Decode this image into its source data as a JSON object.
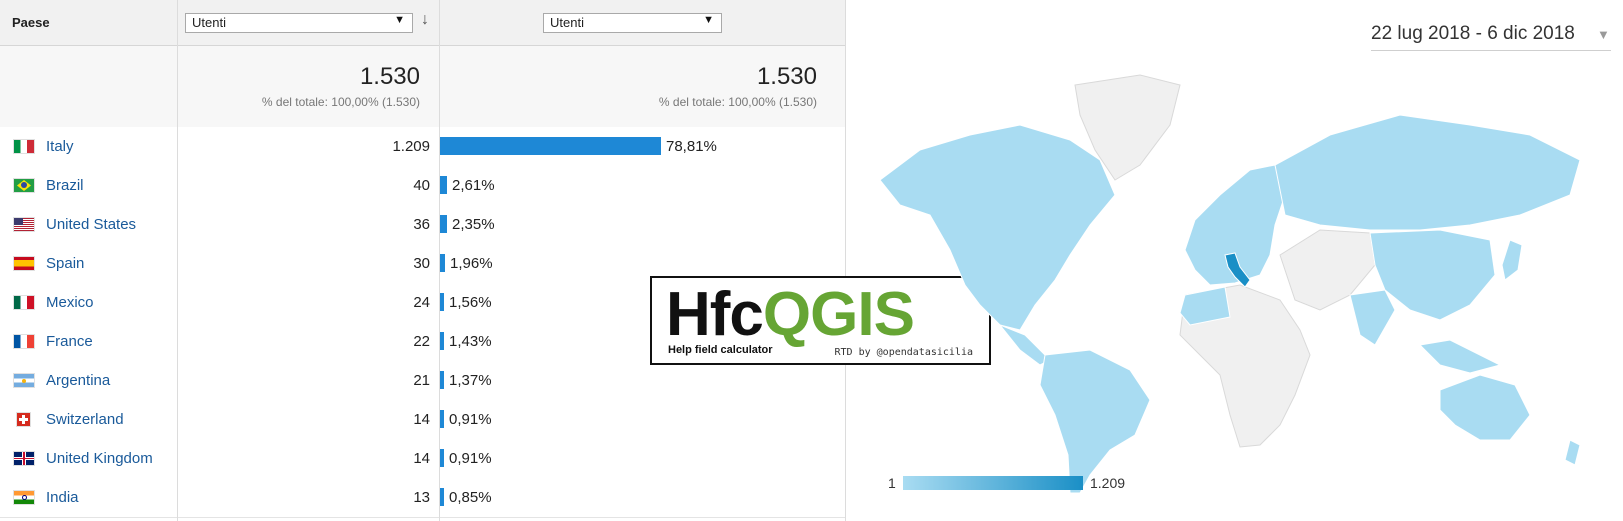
{
  "table": {
    "country_header": "Paese",
    "metric_select_label": "Utenti",
    "compare_select_label": "Utenti",
    "totals": {
      "value": "1.530",
      "subtitle": "% del totale: 100,00% (1.530)",
      "value2": "1.530",
      "subtitle2": "% del totale: 100,00% (1.530)"
    },
    "rows": [
      {
        "country": "Italy",
        "users": "1.209",
        "pct_label": "78,81%",
        "pct": 78.81
      },
      {
        "country": "Brazil",
        "users": "40",
        "pct_label": "2,61%",
        "pct": 2.61
      },
      {
        "country": "United States",
        "users": "36",
        "pct_label": "2,35%",
        "pct": 2.35
      },
      {
        "country": "Spain",
        "users": "30",
        "pct_label": "1,96%",
        "pct": 1.96
      },
      {
        "country": "Mexico",
        "users": "24",
        "pct_label": "1,56%",
        "pct": 1.56
      },
      {
        "country": "France",
        "users": "22",
        "pct_label": "1,43%",
        "pct": 1.43
      },
      {
        "country": "Argentina",
        "users": "21",
        "pct_label": "1,37%",
        "pct": 1.37
      },
      {
        "country": "Switzerland",
        "users": "14",
        "pct_label": "0,91%",
        "pct": 0.91
      },
      {
        "country": "United Kingdom",
        "users": "14",
        "pct_label": "0,91%",
        "pct": 0.91
      },
      {
        "country": "India",
        "users": "13",
        "pct_label": "0,85%",
        "pct": 0.85
      }
    ],
    "bar_color": "#1e88d6"
  },
  "logo": {
    "title_part1": "Hfc",
    "title_part2": "QGIS",
    "subtitle": "Help field calculator",
    "credit": "RTD by @opendatasicilia"
  },
  "map": {
    "date_range": "22 lug 2018 - 6 dic 2018",
    "legend_min": "1",
    "legend_max": "1.209",
    "color_low": "#a9dcf2",
    "color_high": "#1a8fc6",
    "color_nodata": "#f0f0f0"
  }
}
